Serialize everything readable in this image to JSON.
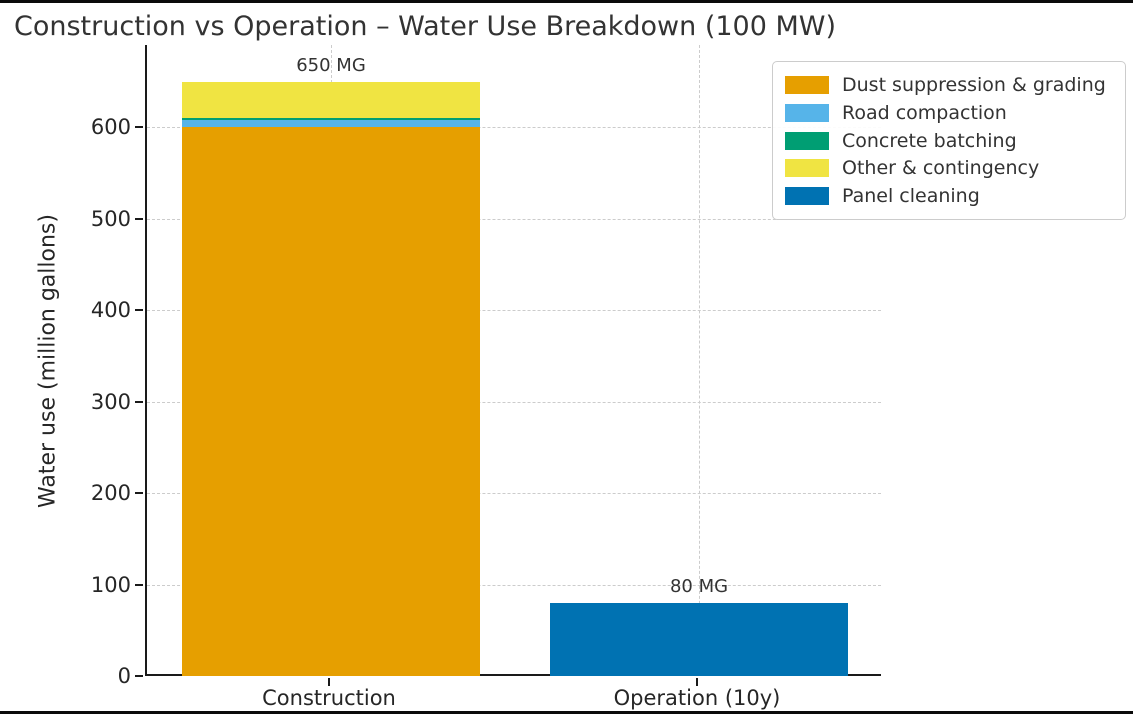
{
  "window": {
    "border_color": "#0a0a0a",
    "background_color": "#ffffff"
  },
  "chart_data": {
    "type": "bar",
    "stacked": true,
    "title": "Construction vs Operation – Water Use Breakdown (100 MW)",
    "ylabel": "Water use (million gallons)",
    "xlabel": "",
    "categories": [
      "Construction",
      "Operation (10y)"
    ],
    "series": [
      {
        "name": "Dust suppression & grading",
        "color": "#E69F00",
        "values": [
          600,
          0
        ]
      },
      {
        "name": "Road compaction",
        "color": "#56B4E9",
        "values": [
          8,
          0
        ]
      },
      {
        "name": "Concrete batching",
        "color": "#009E73",
        "values": [
          2,
          0
        ]
      },
      {
        "name": "Other & contingency",
        "color": "#F0E442",
        "values": [
          40,
          0
        ]
      },
      {
        "name": "Panel cleaning",
        "color": "#0072B2",
        "values": [
          0,
          80
        ]
      }
    ],
    "totals": [
      650,
      80
    ],
    "bar_total_labels": [
      "650 MG",
      "80 MG"
    ],
    "yticks": [
      0,
      100,
      200,
      300,
      400,
      500,
      600
    ],
    "ylim": [
      0,
      690
    ],
    "bar_width_fraction": 0.405,
    "grid": true,
    "grid_color": "#cccccc",
    "legend_position": "upper right, outside plot area",
    "text_color": "#333333",
    "axis_color": "#1a1a1a"
  }
}
